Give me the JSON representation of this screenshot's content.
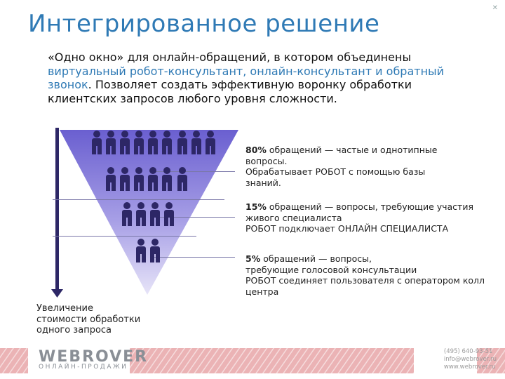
{
  "title": "Интегрированное решение",
  "intro": {
    "part1": "«Одно окно» для онлайн-обращений, в котором объединены ",
    "highlight": "виртуальный робот-консультант, онлайн-консультант и обратный звонок",
    "part2": ". Позволяет создать эффективную воронку обработки клиентских запросов любого уровня сложности."
  },
  "levels": [
    {
      "percent": "80%",
      "line1": " обращений — частые и однотипные",
      "line2": "вопросы.",
      "line3": "Обрабатывает РОБОТ с помощью базы",
      "line4": "знаний."
    },
    {
      "percent": "15%",
      "line1": " обращений — вопросы, требующие участия",
      "line2": "живого специалиста",
      "line3": "РОБОТ подключает ОНЛАЙН СПЕЦИАЛИСТА"
    },
    {
      "percent": "5%",
      "line1": " обращений — вопросы,",
      "line2": "требующие голосовой консультации",
      "line3": "РОБОТ соединяет пользователя с оператором колл",
      "line4": "центра"
    }
  ],
  "axis_label": {
    "line1": "Увеличение",
    "line2": "стоимости обработки",
    "line3": "одного запроса"
  },
  "footer": {
    "logo": "WEBROVER",
    "logo_sub": "ОНЛАЙН-ПРОДАЖИ",
    "phone": "(495) 640-93-51",
    "email": "info@webrover.ru",
    "site": "www.webrover.ru"
  },
  "colors": {
    "accent": "#2f7ab5",
    "funnel": "#6c63c7",
    "people": "#2d2766",
    "footer": "#e6a6a9"
  }
}
